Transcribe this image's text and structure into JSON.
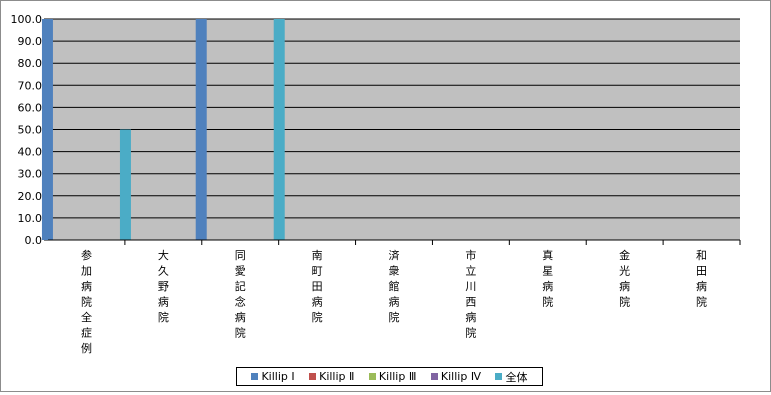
{
  "chart_data": {
    "type": "bar",
    "title": "",
    "xlabel": "",
    "ylabel": "",
    "ylim": [
      0,
      100
    ],
    "y_ticks": [
      "0.0",
      "10.0",
      "20.0",
      "30.0",
      "40.0",
      "50.0",
      "60.0",
      "70.0",
      "80.0",
      "90.0",
      "100.0"
    ],
    "grid": true,
    "legend_position": "bottom",
    "plot_background": "#c0c0c0",
    "categories": [
      "参加病院全症例",
      "大久野病院",
      "同愛記念病院",
      "南町田病院",
      "済衆館病院",
      "市立川西病院",
      "真星病院",
      "金光病院",
      "和田病院"
    ],
    "series": [
      {
        "name": "Killip Ⅰ",
        "color": "#4f81bd",
        "values": [
          100,
          0,
          100,
          0,
          0,
          0,
          0,
          0,
          0
        ]
      },
      {
        "name": "Killip Ⅱ",
        "color": "#c0504d",
        "values": [
          0,
          0,
          0,
          0,
          0,
          0,
          0,
          0,
          0
        ]
      },
      {
        "name": "Killip Ⅲ",
        "color": "#9bbb59",
        "values": [
          0,
          0,
          0,
          0,
          0,
          0,
          0,
          0,
          0
        ]
      },
      {
        "name": "Killip Ⅳ",
        "color": "#8064a2",
        "values": [
          0,
          0,
          0,
          0,
          0,
          0,
          0,
          0,
          0
        ]
      },
      {
        "name": "全体",
        "color": "#4bacc6",
        "values": [
          50,
          0,
          100,
          0,
          0,
          0,
          0,
          0,
          0
        ]
      }
    ]
  }
}
